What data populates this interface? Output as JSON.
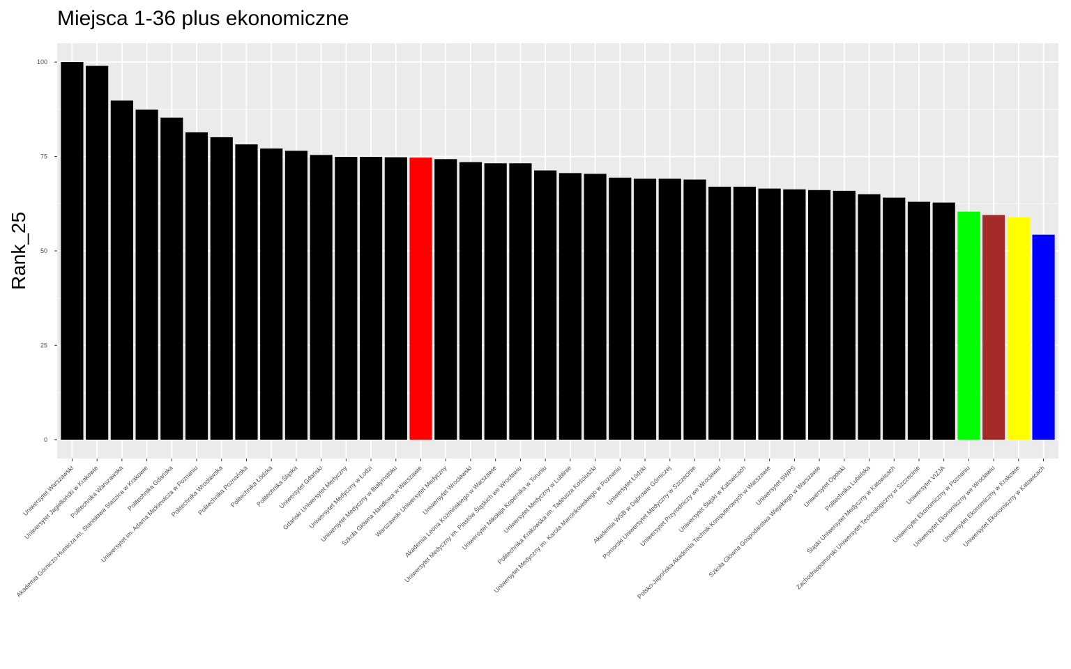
{
  "chart_data": {
    "type": "bar",
    "title": "Miejsca 1-36 plus ekonomiczne",
    "xlabel": "",
    "ylabel": "Rank_25",
    "ylim": [
      -5,
      105
    ],
    "yticks": [
      0,
      25,
      50,
      75,
      100
    ],
    "grid": true,
    "categories": [
      "Uniwersytet Warszawski",
      "Uniwersytet Jagielloński w Krakowie",
      "Politechnika Warszawska",
      "Akademia Górniczo-Hutnicza im. Stanisława Staszica w Krakowie",
      "Politechnika Gdańska",
      "Uniwersytet im. Adama Mickiewicza w Poznaniu",
      "Politechnika Wrocławska",
      "Politechnika Poznańska",
      "Politechnika Łódzka",
      "Politechnika Śląska",
      "Uniwersytet Gdański",
      "Gdański Uniwersytet Medyczny",
      "Uniwersytet Medyczny w Łodzi",
      "Uniwersytet Medyczny w Białymstoku",
      "Szkoła Główna Handlowa w Warszawie",
      "Warszawski Uniwersytet Medyczny",
      "Uniwersytet Wrocławski",
      "Akademia Leona Koźmińskiego w Warszawie",
      "Uniwersytet Medyczny im. Piastów Śląskich we Wrocławiu",
      "Uniwersytet Mikołaja Kopernika w Toruniu",
      "Uniwersytet Medyczny w Lublinie",
      "Politechnika Krakowska im. Tadeusza Kościuszki",
      "Uniwersytet Medyczny im. Karola Marcinkowskiego w Poznaniu",
      "Uniwersytet Łódzki",
      "Akademia WSB w Dąbrowie Górniczej",
      "Pomorski Uniwersytet Medyczny w Szczecinie",
      "Uniwersytet Przyrodniczy we Wrocławiu",
      "Uniwersytet Śląski w Katowicach",
      "Polsko-Japońska Akademia Technik Komputerowych w Warszawie",
      "Uniwersytet SWPS",
      "Szkoła Główna Gospodarstwa Wiejskiego w Warszawie",
      "Uniwersytet Opolski",
      "Politechnika Lubelska",
      "Śląski Uniwersytet Medyczny w Katowicach",
      "Zachodniopomorski Uniwersytet Technologiczny w Szczecinie",
      "Uniwersytet VIZJA",
      "Uniwersytet Ekonomiczny w Poznaniu",
      "Uniwersytet Ekonomiczny we Wrocławiu",
      "Uniwersytet Ekonomiczny w Krakowie",
      "Uniwersytet Ekonomiczny w Katowicach"
    ],
    "values": [
      100,
      99,
      89.8,
      87.4,
      85.3,
      81.4,
      80.1,
      78.2,
      77.1,
      76.5,
      75.4,
      74.9,
      74.9,
      74.8,
      74.7,
      74.3,
      73.5,
      73.2,
      73.2,
      71.3,
      70.6,
      70.4,
      69.4,
      69.1,
      69.1,
      68.9,
      67.0,
      67.0,
      66.5,
      66.3,
      66.1,
      65.9,
      65.0,
      64.1,
      63.0,
      62.8,
      60.4,
      59.5,
      58.9,
      54.3
    ],
    "colors": [
      "#000000",
      "#000000",
      "#000000",
      "#000000",
      "#000000",
      "#000000",
      "#000000",
      "#000000",
      "#000000",
      "#000000",
      "#000000",
      "#000000",
      "#000000",
      "#000000",
      "#ff0000",
      "#000000",
      "#000000",
      "#000000",
      "#000000",
      "#000000",
      "#000000",
      "#000000",
      "#000000",
      "#000000",
      "#000000",
      "#000000",
      "#000000",
      "#000000",
      "#000000",
      "#000000",
      "#000000",
      "#000000",
      "#000000",
      "#000000",
      "#000000",
      "#000000",
      "#00ff00",
      "#a52a2a",
      "#ffff00",
      "#0000ff"
    ]
  }
}
